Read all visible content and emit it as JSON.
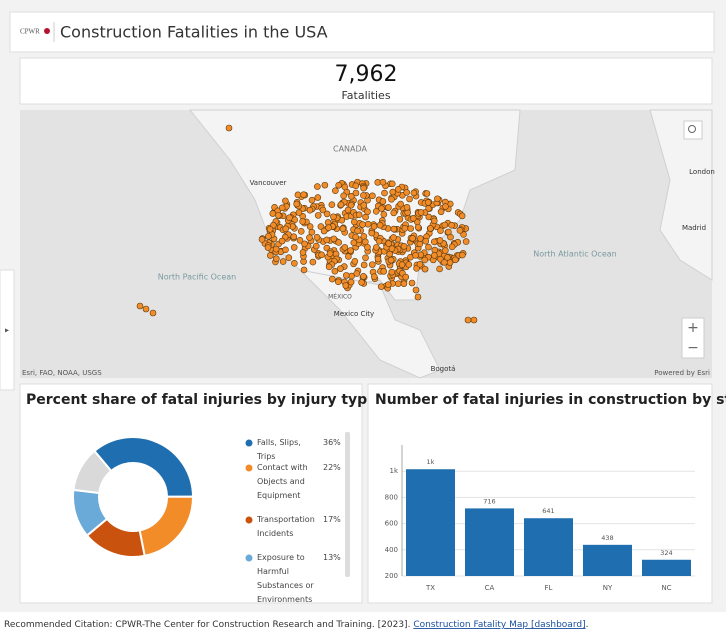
{
  "header": {
    "logo": "CPWR",
    "title": "Construction Fatalities in the USA"
  },
  "indicator": {
    "value": "7,962",
    "label": "Fatalities"
  },
  "map": {
    "labels": [
      "CANADA",
      "Vancouver",
      "North Pacific Ocean",
      "North Atlantic Ocean",
      "MÉXICO",
      "Mexico City",
      "Madrid",
      "London",
      "Bogotá"
    ],
    "attribution": "Esri, FAO, NOAA, USGS",
    "powered": "Powered by Esri"
  },
  "donut": {
    "type": "pie",
    "title": "Percent share of fatal injuries by injury type",
    "categories": [
      "Falls, Slips, Trips",
      "Contact with Objects and Equipment",
      "Transportation Incidents",
      "Exposure to Harmful Substances or Environments",
      null
    ],
    "values": [
      36,
      22,
      17,
      13,
      12
    ],
    "value_labels": [
      "36%",
      "22%",
      "17%",
      "13%",
      null
    ],
    "colors": [
      "#1f6fb0",
      "#f28c28",
      "#c9520e",
      "#6aaad8",
      "#d9d9d9"
    ]
  },
  "bars": {
    "type": "bar",
    "title": "Number of fatal injuries in construction by state",
    "categories": [
      "TX",
      "CA",
      "FL",
      "NY",
      "NC"
    ],
    "values": [
      1015,
      716,
      641,
      438,
      324
    ],
    "value_labels": [
      "1k",
      "716",
      "641",
      "438",
      "324"
    ],
    "color": "#1f6fb0",
    "ylim": [
      200,
      1200
    ],
    "yticks": [
      200,
      400,
      600,
      800,
      {
        "value": 1000,
        "label": "1k"
      }
    ],
    "grid": true
  },
  "citation": {
    "text": "Recommended Citation: CPWR-The Center for Construction Research and Training. [2023].",
    "link": "Construction Fatality Map [dashboard]",
    "suffix": "."
  }
}
